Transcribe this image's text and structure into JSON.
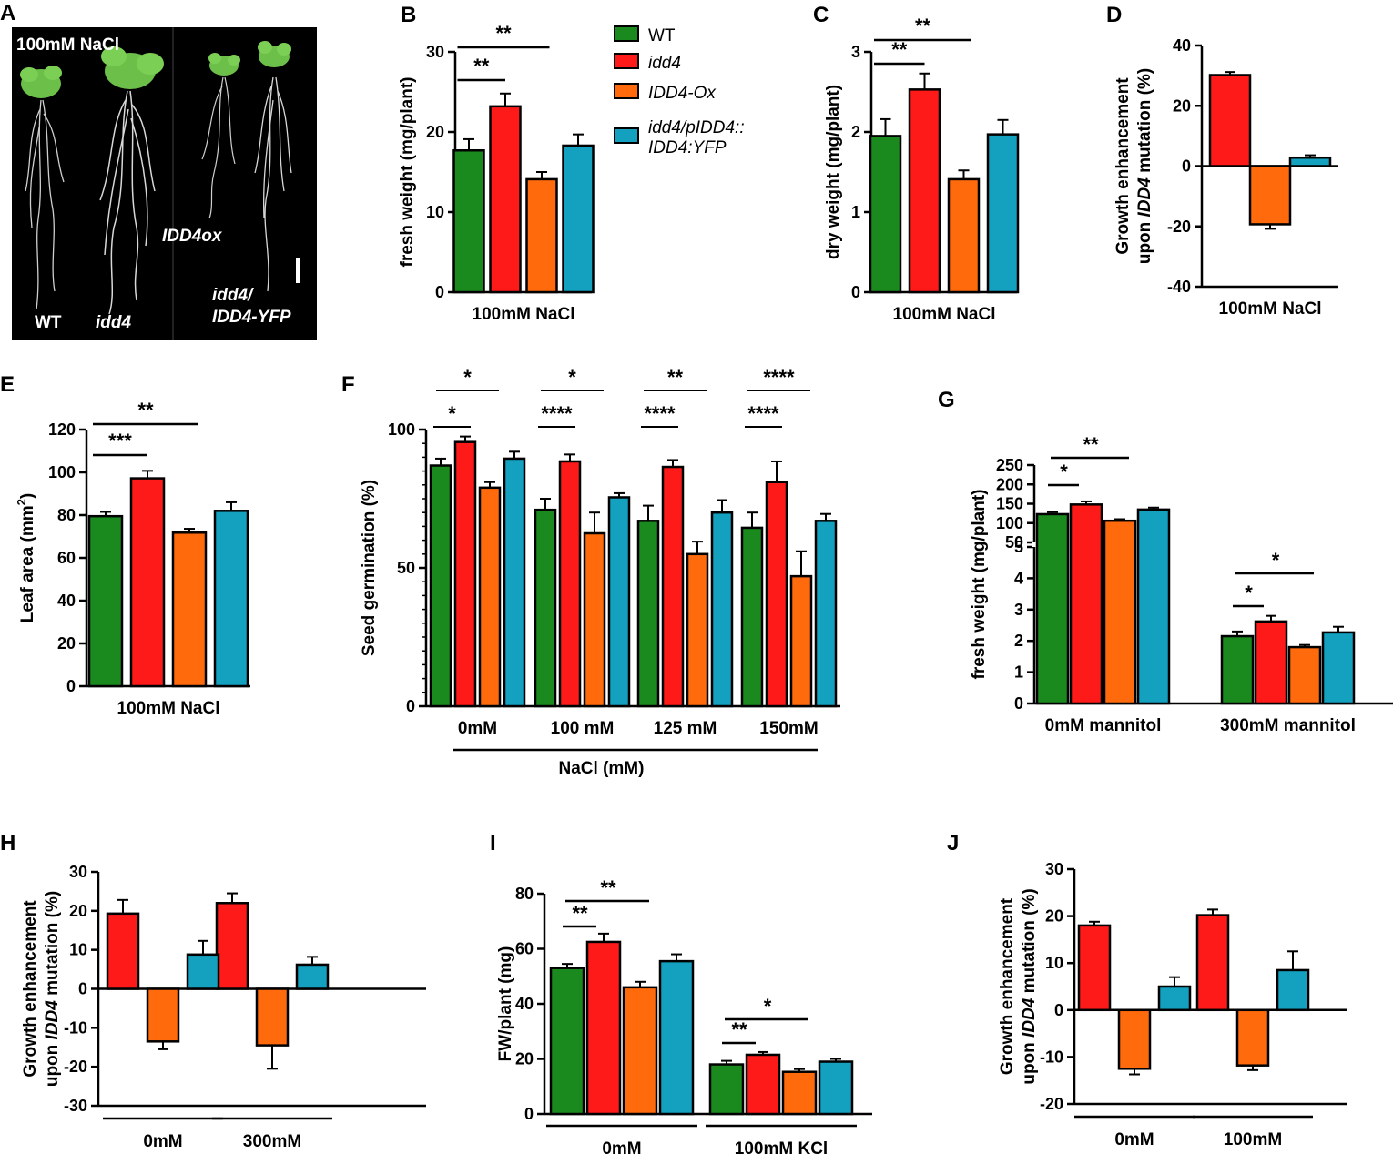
{
  "colors": {
    "wt": "#1a8a1f",
    "idd4": "#ff1a1a",
    "ox": "#ff6a0d",
    "comp": "#14a0bf"
  },
  "legend": [
    {
      "label": "WT",
      "italic": false,
      "color": "#1a8a1f"
    },
    {
      "label": "idd4",
      "italic": true,
      "color": "#ff1a1a"
    },
    {
      "label": "IDD4-Ox",
      "italic": true,
      "color": "#ff6a0d"
    },
    {
      "label": "idd4/pIDD4::\nIDD4:YFP",
      "italic": true,
      "color": "#14a0bf"
    }
  ],
  "panel_a": {
    "letter": "A",
    "title": "100mM NaCl",
    "labels": [
      "WT",
      "idd4",
      "IDD4ox",
      "idd4/\nIDD4-YFP"
    ]
  },
  "chart_data": [
    {
      "id": "B",
      "type": "bar",
      "ylabel": "fresh weight (mg/plant)",
      "ylim": [
        0,
        30
      ],
      "yticks": [
        0,
        10,
        20,
        30
      ],
      "groups": [
        "100mM NaCl"
      ],
      "series": [
        {
          "name": "WT",
          "values": [
            17.7
          ],
          "errors": [
            1.4
          ]
        },
        {
          "name": "idd4",
          "values": [
            23.2
          ],
          "errors": [
            1.6
          ]
        },
        {
          "name": "IDD4-Ox",
          "values": [
            14.1
          ],
          "errors": [
            0.9
          ]
        },
        {
          "name": "idd4/pIDD4::IDD4:YFP",
          "values": [
            18.3
          ],
          "errors": [
            1.4
          ]
        }
      ],
      "significance": [
        {
          "label": "**",
          "from": 0,
          "to": 1
        },
        {
          "label": "**",
          "from": 0,
          "to": 2
        }
      ]
    },
    {
      "id": "C",
      "type": "bar",
      "ylabel": "dry weight (mg/plant)",
      "ylim": [
        0,
        3
      ],
      "yticks": [
        0,
        1,
        2,
        3
      ],
      "groups": [
        "100mM NaCl"
      ],
      "series": [
        {
          "name": "WT",
          "values": [
            1.95
          ],
          "errors": [
            0.21
          ]
        },
        {
          "name": "idd4",
          "values": [
            2.53
          ],
          "errors": [
            0.2
          ]
        },
        {
          "name": "IDD4-Ox",
          "values": [
            1.41
          ],
          "errors": [
            0.11
          ]
        },
        {
          "name": "idd4/pIDD4::IDD4:YFP",
          "values": [
            1.97
          ],
          "errors": [
            0.18
          ]
        }
      ],
      "significance": [
        {
          "label": "**",
          "from": 0,
          "to": 1
        },
        {
          "label": "**",
          "from": 0,
          "to": 2
        }
      ]
    },
    {
      "id": "D",
      "type": "bar",
      "ylabel": "Growth enhancement\nupon IDD4 mutation (%)",
      "ylim": [
        -40,
        40
      ],
      "yticks": [
        -40,
        -20,
        0,
        20,
        40
      ],
      "groups": [
        "100mM NaCl"
      ],
      "series": [
        {
          "name": "idd4",
          "values": [
            30.2
          ],
          "errors": [
            1.0
          ]
        },
        {
          "name": "IDD4-Ox",
          "values": [
            -19.3
          ],
          "errors": [
            1.5
          ]
        },
        {
          "name": "idd4/pIDD4::IDD4:YFP",
          "values": [
            2.8
          ],
          "errors": [
            0.8
          ]
        }
      ]
    },
    {
      "id": "E",
      "type": "bar",
      "ylabel": "Leaf area (mm²)",
      "ylim": [
        0,
        120
      ],
      "yticks": [
        0,
        20,
        40,
        60,
        80,
        100,
        120
      ],
      "groups": [
        "100mM NaCl"
      ],
      "series": [
        {
          "name": "WT",
          "values": [
            79.5
          ],
          "errors": [
            2.0
          ]
        },
        {
          "name": "idd4",
          "values": [
            97.2
          ],
          "errors": [
            3.5
          ]
        },
        {
          "name": "IDD4-Ox",
          "values": [
            71.8
          ],
          "errors": [
            1.8
          ]
        },
        {
          "name": "idd4/pIDD4::IDD4:YFP",
          "values": [
            82.0
          ],
          "errors": [
            4.0
          ]
        }
      ],
      "significance": [
        {
          "label": "***",
          "from": 0,
          "to": 1
        },
        {
          "label": "**",
          "from": 0,
          "to": 2
        }
      ]
    },
    {
      "id": "F",
      "type": "bar",
      "ylabel": "Seed germination (%)",
      "xlabel": "NaCl (mM)",
      "ylim": [
        0,
        100
      ],
      "yticks": [
        0,
        50,
        100
      ],
      "groups": [
        "0mM",
        "100 mM",
        "125 mM",
        "150mM"
      ],
      "series": [
        {
          "name": "WT",
          "values": [
            87,
            71,
            67,
            64.5
          ],
          "errors": [
            2.5,
            4,
            5.5,
            5.5
          ]
        },
        {
          "name": "idd4",
          "values": [
            95.5,
            88.5,
            86.5,
            81
          ],
          "errors": [
            2,
            2.5,
            2.5,
            7.5
          ]
        },
        {
          "name": "IDD4-Ox",
          "values": [
            79,
            62.5,
            55,
            47
          ],
          "errors": [
            2,
            7.5,
            4.5,
            9
          ]
        },
        {
          "name": "idd4/pIDD4::IDD4:YFP",
          "values": [
            89.5,
            75.5,
            70,
            67
          ],
          "errors": [
            2.5,
            1.5,
            4.5,
            2.5
          ]
        }
      ],
      "significance": [
        {
          "group": 0,
          "upper": "*",
          "lower": "*"
        },
        {
          "group": 1,
          "upper": "*",
          "lower": "****"
        },
        {
          "group": 2,
          "upper": "**",
          "lower": "****"
        },
        {
          "group": 3,
          "upper": "****",
          "lower": "****"
        }
      ]
    },
    {
      "id": "G",
      "type": "bar",
      "ylabel": "fresh weight (mg/plant)",
      "axis_break": true,
      "yticks": [
        0,
        1,
        2,
        3,
        4,
        5,
        50,
        100,
        150,
        200,
        250
      ],
      "groups": [
        "0mM mannitol",
        "300mM mannitol"
      ],
      "series": [
        {
          "name": "WT",
          "values": [
            123,
            2.15
          ],
          "errors": [
            5,
            0.15
          ]
        },
        {
          "name": "idd4",
          "values": [
            148,
            2.62
          ],
          "errors": [
            8,
            0.18
          ]
        },
        {
          "name": "IDD4-Ox",
          "values": [
            106,
            1.8
          ],
          "errors": [
            4,
            0.07
          ]
        },
        {
          "name": "idd4/pIDD4::IDD4:YFP",
          "values": [
            135,
            2.27
          ],
          "errors": [
            5,
            0.18
          ]
        }
      ],
      "significance": [
        {
          "group": 0,
          "labels": [
            "*",
            "**"
          ]
        },
        {
          "group": 1,
          "labels": [
            "*",
            "*"
          ]
        }
      ]
    },
    {
      "id": "H",
      "type": "bar",
      "ylabel": "Growth enhancement\nupon IDD4 mutation (%)",
      "ylim": [
        -30,
        30
      ],
      "yticks": [
        -30,
        -20,
        -10,
        0,
        10,
        20,
        30
      ],
      "groups": [
        "0mM",
        "300mM"
      ],
      "series": [
        {
          "name": "idd4",
          "values": [
            19.3,
            22
          ],
          "errors": [
            3.5,
            2.5
          ]
        },
        {
          "name": "IDD4-Ox",
          "values": [
            -13.5,
            -14.5
          ],
          "errors": [
            2,
            6
          ]
        },
        {
          "name": "idd4/pIDD4::IDD4:YFP",
          "values": [
            8.8,
            6.2
          ],
          "errors": [
            3.5,
            2
          ]
        }
      ]
    },
    {
      "id": "I",
      "type": "bar",
      "ylabel": "FW/plant (mg)",
      "ylim": [
        0,
        80
      ],
      "yticks": [
        0,
        20,
        40,
        60,
        80
      ],
      "groups": [
        "0mM",
        "100mM KCl"
      ],
      "series": [
        {
          "name": "WT",
          "values": [
            53,
            18
          ],
          "errors": [
            1.5,
            1.3
          ]
        },
        {
          "name": "idd4",
          "values": [
            62.5,
            21.5
          ],
          "errors": [
            3,
            1
          ]
        },
        {
          "name": "IDD4-Ox",
          "values": [
            46,
            15.3
          ],
          "errors": [
            2,
            1
          ]
        },
        {
          "name": "idd4/pIDD4::IDD4:YFP",
          "values": [
            55.5,
            19
          ],
          "errors": [
            2.5,
            1
          ]
        }
      ],
      "significance": [
        {
          "group": 0,
          "labels": [
            "**",
            "**"
          ]
        },
        {
          "group": 1,
          "labels": [
            "**",
            "*"
          ]
        }
      ]
    },
    {
      "id": "J",
      "type": "bar",
      "ylabel": "Growth enhancement\nupon IDD4 mutation (%)",
      "ylim": [
        -20,
        30
      ],
      "yticks": [
        -20,
        -10,
        0,
        10,
        20,
        30
      ],
      "groups": [
        "0mM",
        "100mM"
      ],
      "series": [
        {
          "name": "idd4",
          "values": [
            18,
            20.2
          ],
          "errors": [
            0.8,
            1.2
          ]
        },
        {
          "name": "IDD4-Ox",
          "values": [
            -12.5,
            -11.8
          ],
          "errors": [
            1.2,
            1
          ]
        },
        {
          "name": "idd4/pIDD4::IDD4:YFP",
          "values": [
            5,
            8.5
          ],
          "errors": [
            2,
            4
          ]
        }
      ]
    }
  ]
}
